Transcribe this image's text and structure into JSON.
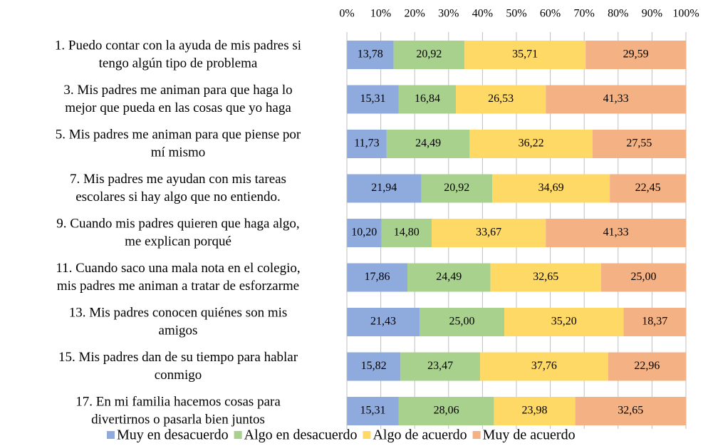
{
  "chart_data": {
    "type": "stacked_barh",
    "categories": [
      [
        "1. Puedo contar con la ayuda de mis padres si",
        "tengo algún tipo de problema"
      ],
      [
        "3. Mis padres me animan para que haga lo",
        "mejor que pueda en las cosas que yo haga"
      ],
      [
        "5. Mis padres me animan para que piense por",
        "mí mismo"
      ],
      [
        "7. Mis padres me ayudan con mis tareas",
        "escolares si hay algo que no entiendo."
      ],
      [
        "9. Cuando mis padres quieren que haga algo,",
        "me explican porqué"
      ],
      [
        "11. Cuando saco una mala nota en el colegio,",
        "mis padres me animan a tratar de esforzarme"
      ],
      [
        "13. Mis padres conocen quiénes son mis",
        "amigos"
      ],
      [
        "15. Mis padres dan de su tiempo para hablar",
        "conmigo"
      ],
      [
        "17. En mi familia hacemos cosas para",
        "divertirnos o pasarla bien juntos"
      ]
    ],
    "series": [
      {
        "name": "Muy en desacuerdo",
        "color": "#8faadc",
        "values": [
          13.78,
          15.31,
          11.73,
          21.94,
          10.2,
          17.86,
          21.43,
          15.82,
          15.31
        ],
        "value_labels": [
          "13,78",
          "15,31",
          "11,73",
          "21,94",
          "10,20",
          "17,86",
          "21,43",
          "15,82",
          "15,31"
        ]
      },
      {
        "name": "Algo en desacuerdo",
        "color": "#a9d18e",
        "values": [
          20.92,
          16.84,
          24.49,
          20.92,
          14.8,
          24.49,
          25.0,
          23.47,
          28.06
        ],
        "value_labels": [
          "20,92",
          "16,84",
          "24,49",
          "20,92",
          "14,80",
          "24,49",
          "25,00",
          "23,47",
          "28,06"
        ]
      },
      {
        "name": "Algo de acuerdo",
        "color": "#ffd966",
        "values": [
          35.71,
          26.53,
          36.22,
          34.69,
          33.67,
          32.65,
          35.2,
          37.76,
          23.98
        ],
        "value_labels": [
          "35,71",
          "26,53",
          "36,22",
          "34,69",
          "33,67",
          "32,65",
          "35,20",
          "37,76",
          "23,98"
        ]
      },
      {
        "name": "Muy de acuerdo",
        "color": "#f4b183",
        "values": [
          29.59,
          41.33,
          27.55,
          22.45,
          41.33,
          25.0,
          18.37,
          22.96,
          32.65
        ],
        "value_labels": [
          "29,59",
          "41,33",
          "27,55",
          "22,45",
          "41,33",
          "25,00",
          "18,37",
          "22,96",
          "32,65"
        ]
      }
    ],
    "xlim": [
      0,
      100
    ],
    "xticks": [
      {
        "value": 0,
        "label": "0%"
      },
      {
        "value": 10,
        "label": "10%"
      },
      {
        "value": 20,
        "label": "20%"
      },
      {
        "value": 30,
        "label": "30%"
      },
      {
        "value": 40,
        "label": "40%"
      },
      {
        "value": 50,
        "label": "50%"
      },
      {
        "value": 60,
        "label": "60%"
      },
      {
        "value": 70,
        "label": "70%"
      },
      {
        "value": 80,
        "label": "80%"
      },
      {
        "value": 90,
        "label": "90%"
      },
      {
        "value": 100,
        "label": "100%"
      }
    ],
    "grid": true,
    "legend": "bottom"
  }
}
